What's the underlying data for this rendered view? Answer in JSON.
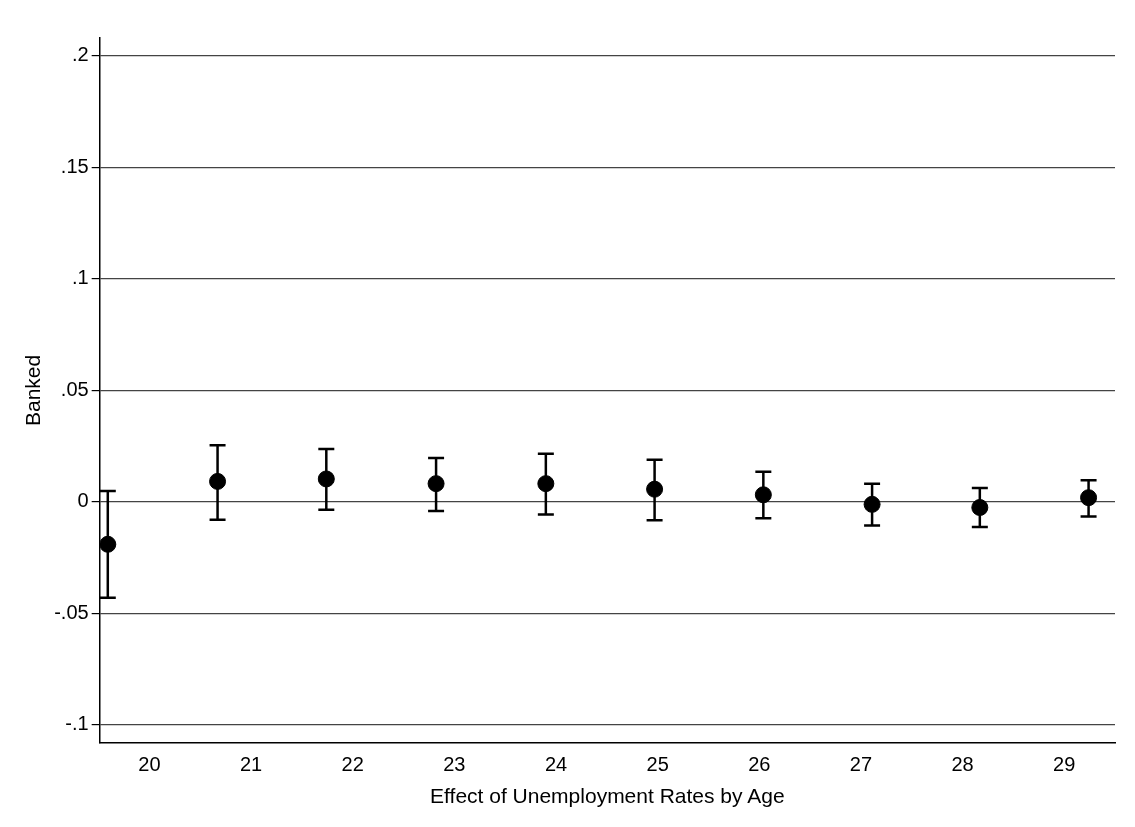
{
  "chart_data": {
    "type": "scatter",
    "xlabel": "Effect of Unemployment Rates by Age",
    "ylabel": "Banked",
    "x": [
      19.59,
      20.67,
      21.74,
      22.82,
      23.9,
      24.97,
      26.04,
      27.11,
      28.17,
      29.24
    ],
    "series": [
      {
        "color": "#000000",
        "values": [
          -0.019,
          0.0092,
          0.0103,
          0.0082,
          0.0082,
          0.0057,
          0.0032,
          -0.0011,
          -0.0025,
          0.0019
        ],
        "errors": [
          [
            -0.043,
            0.0049
          ],
          [
            -0.008,
            0.0254
          ],
          [
            -0.0035,
            0.0237
          ],
          [
            -0.0041,
            0.0197
          ],
          [
            -0.0056,
            0.0216
          ],
          [
            -0.0082,
            0.0189
          ],
          [
            -0.0073,
            0.0135
          ],
          [
            -0.0106,
            0.0082
          ],
          [
            -0.0113,
            0.0062
          ],
          [
            -0.0065,
            0.0097
          ]
        ]
      }
    ],
    "xlim": [
      19.51,
      29.5
    ],
    "xticks": [
      20,
      21,
      22,
      23,
      24,
      25,
      26,
      27,
      28,
      29
    ],
    "ylim": [
      -0.108,
      0.208
    ],
    "yticks": [
      {
        "value": -0.1,
        "label": "-.1"
      },
      {
        "value": -0.05,
        "label": "-.05"
      },
      {
        "value": 0,
        "label": "0"
      },
      {
        "value": 0.05,
        "label": ".05"
      },
      {
        "value": 0.1,
        "label": ".1"
      },
      {
        "value": 0.15,
        "label": ".15"
      },
      {
        "value": 0.2,
        "label": ".2"
      }
    ],
    "grid": "y",
    "legend": false,
    "marker": "circle"
  }
}
